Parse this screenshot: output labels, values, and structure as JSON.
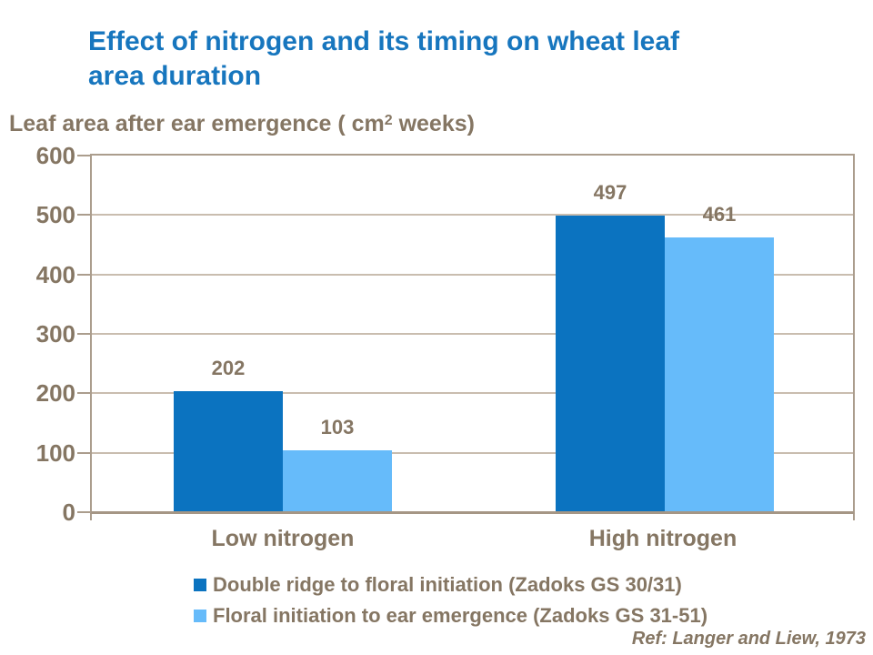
{
  "title": {
    "line1": "Effect of nitrogen and its timing on wheat leaf",
    "line2": "area duration"
  },
  "subtitle": {
    "prefix": "Leaf area after ear emergence ( cm",
    "superscript": "2",
    "suffix": " weeks)"
  },
  "chart_data": {
    "type": "bar",
    "categories": [
      "Low nitrogen",
      "High nitrogen"
    ],
    "series": [
      {
        "name": "Double ridge to floral initiation (Zadoks GS 30/31)",
        "color": "#0B73C0",
        "values": [
          202,
          497
        ]
      },
      {
        "name": "Floral initiation to ear emergence (Zadoks GS 31-51)",
        "color": "#66BBFA",
        "values": [
          103,
          461
        ]
      }
    ],
    "title": "Effect of nitrogen and its timing on wheat leaf area duration",
    "ylabel": "Leaf area after ear emergence ( cm2 weeks)",
    "xlabel": "",
    "ylim": [
      0,
      600
    ],
    "ytick_interval": 100,
    "grid": true,
    "data_labels": true,
    "legend_position": "bottom"
  },
  "axis": {
    "ytick_labels": [
      "600",
      "500",
      "400",
      "300",
      "200",
      "100",
      "0"
    ]
  },
  "footer": {
    "ref": "Ref: Langer and Liew, 1973"
  },
  "colors": {
    "title_blue": "#1776BE",
    "text_brown": "#857663",
    "plot_border_tan": "#AB9D8D",
    "gridline_tan": "#C9BDAF",
    "series1_dark_blue": "#0B73C0",
    "series2_light_blue": "#66BBFA",
    "background": "#FFFFFF"
  }
}
